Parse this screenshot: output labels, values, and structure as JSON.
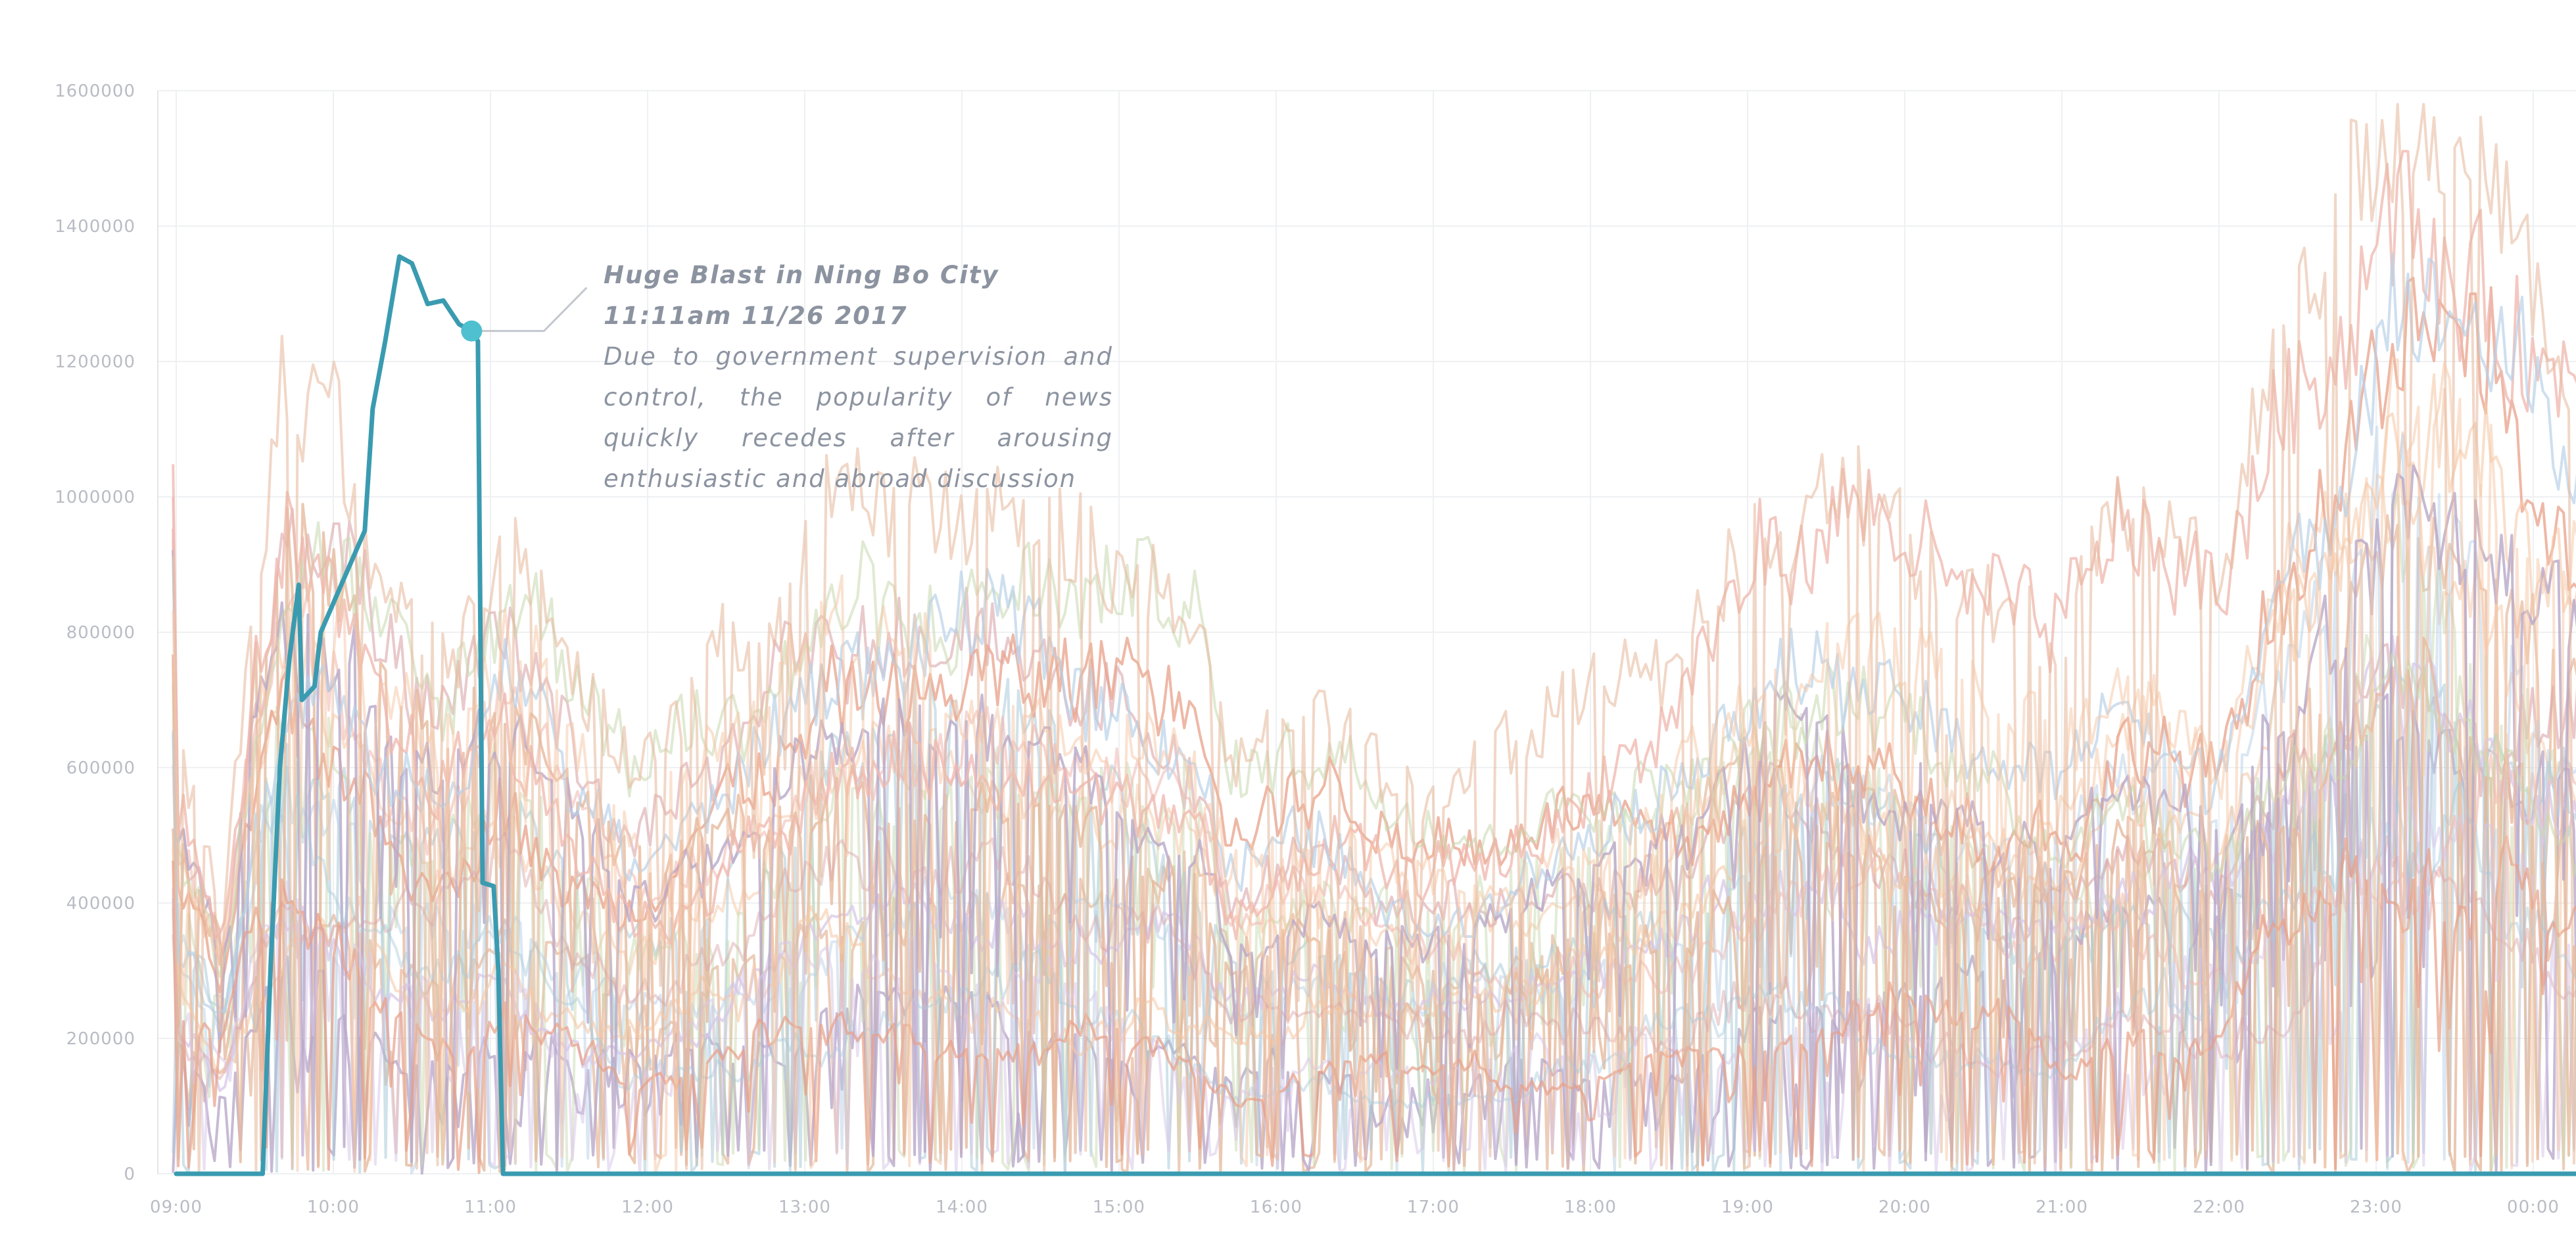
{
  "chart_data": {
    "type": "line",
    "title": "",
    "xlabel": "",
    "ylabel": "",
    "x_ticks": [
      "09:00",
      "10:00",
      "11:00",
      "12:00",
      "13:00",
      "14:00",
      "15:00",
      "16:00",
      "17:00",
      "18:00",
      "19:00",
      "20:00",
      "21:00",
      "22:00",
      "23:00",
      "00:00"
    ],
    "y_ticks": [
      "0",
      "200000",
      "400000",
      "600000",
      "800000",
      "1000000",
      "1200000",
      "1400000",
      "1600000"
    ],
    "x_range_hours": [
      8.93,
      24.3
    ],
    "ylim": [
      0,
      1600000
    ],
    "grid": true,
    "highlight_series": {
      "color": "#3a9bb0",
      "points": [
        [
          9.0,
          0
        ],
        [
          9.55,
          0
        ],
        [
          9.6,
          300000
        ],
        [
          9.66,
          600000
        ],
        [
          9.72,
          760000
        ],
        [
          9.78,
          870000
        ],
        [
          9.8,
          700000
        ],
        [
          9.88,
          720000
        ],
        [
          9.92,
          800000
        ],
        [
          10.05,
          870000
        ],
        [
          10.2,
          950000
        ],
        [
          10.25,
          1130000
        ],
        [
          10.33,
          1230000
        ],
        [
          10.42,
          1355000
        ],
        [
          10.5,
          1345000
        ],
        [
          10.6,
          1285000
        ],
        [
          10.7,
          1290000
        ],
        [
          10.8,
          1255000
        ],
        [
          10.88,
          1245000
        ],
        [
          10.92,
          1230000
        ],
        [
          10.95,
          430000
        ],
        [
          11.02,
          425000
        ],
        [
          11.05,
          300000
        ],
        [
          11.08,
          0
        ],
        [
          24.3,
          0
        ]
      ]
    },
    "background_colors": [
      "#e6b89c",
      "#f5c9a8",
      "#d9a3a8",
      "#b9a9c9",
      "#a9c9d9",
      "#c9d9b0",
      "#f0b8b0",
      "#b8d0e8",
      "#d8c8e8",
      "#e8a088"
    ]
  },
  "annotation": {
    "marker_time": 10.88,
    "marker_value": 1245000,
    "title": "Huge Blast in Ning Bo City",
    "when": "11:11am 11/26 2017",
    "description": "Due to government supervision and control, the popularity of news quickly recedes after arousing enthusiastic and abroad discussion"
  }
}
